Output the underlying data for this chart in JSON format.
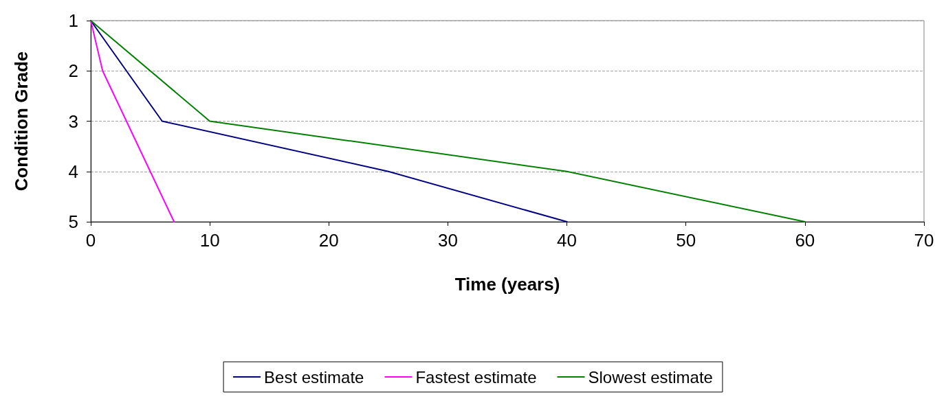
{
  "chart_data": {
    "type": "line",
    "xlabel": "Time (years)",
    "ylabel": "Condition Grade",
    "xlim": [
      0,
      70
    ],
    "xticks": [
      0,
      10,
      20,
      30,
      40,
      50,
      60,
      70
    ],
    "ylim": [
      5,
      1
    ],
    "yticks": [
      1,
      2,
      3,
      4,
      5
    ],
    "grid": "y",
    "legend": "bottom",
    "marker": "none",
    "line_style": "solid",
    "series": [
      {
        "name": "Best estimate",
        "color": "#000080",
        "x": [
          0,
          6,
          25,
          40
        ],
        "values": [
          1,
          3,
          4,
          5
        ]
      },
      {
        "name": "Fastest estimate",
        "color": "#ff00ff",
        "x": [
          0,
          1,
          3,
          5,
          7
        ],
        "values": [
          1,
          2,
          3,
          4,
          5
        ]
      },
      {
        "name": "Slowest estimate",
        "color": "#008000",
        "x": [
          0,
          10,
          40,
          60
        ],
        "values": [
          1,
          3,
          4,
          5
        ]
      }
    ]
  }
}
